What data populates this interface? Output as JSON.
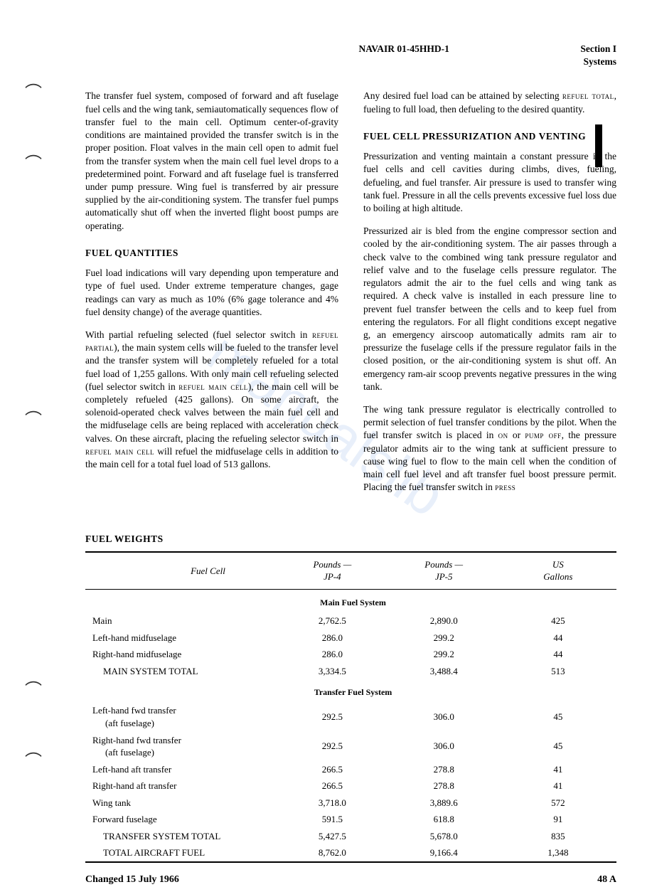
{
  "header": {
    "doc_number": "NAVAIR 01-45HHD-1",
    "section": "Section I",
    "subsection": "Systems"
  },
  "watermark": "manualslib",
  "col_left": {
    "p1": "The transfer fuel system, composed of forward and aft fuselage fuel cells and the wing tank, semiautomatically sequences flow of transfer fuel to the main cell. Optimum center-of-gravity conditions are maintained provided the transfer switch is in the proper position. Float valves in the main cell open to admit fuel from the transfer system when the main cell fuel level drops to a predetermined point. Forward and aft fuselage fuel is transferred under pump pressure. Wing fuel is transferred by air pressure supplied by the air-conditioning system. The transfer fuel pumps automatically shut off when the inverted flight boost pumps are operating.",
    "h1": "FUEL QUANTITIES",
    "p2": "Fuel load indications will vary depending upon temperature and type of fuel used. Under extreme temperature changes, gage readings can vary as much as 10% (6% gage tolerance and 4% fuel density change) of the average quantities.",
    "p3_a": "With partial refueling selected (fuel selector switch in ",
    "p3_sc1": "refuel partial",
    "p3_b": "), the main system cells will be fueled to the transfer level and the transfer system will be completely refueled for a total fuel load of 1,255 gallons. With only main cell refueling selected (fuel selector switch in ",
    "p3_sc2": "refuel main cell",
    "p3_c": "), the main cell will be completely refueled (425 gallons). On some aircraft, the solenoid-operated check valves between the main fuel cell and the midfuselage cells are being replaced with acceleration check valves. On these aircraft, placing the refueling selector switch in ",
    "p3_sc3": "refuel main cell",
    "p3_d": " will refuel the midfuselage cells in addition to the main cell for a total fuel load of 513 gallons."
  },
  "col_right": {
    "p1_a": "Any desired fuel load can be attained by selecting ",
    "p1_sc1": "refuel total",
    "p1_b": ", fueling to full load, then defueling to the desired quantity.",
    "h1": "FUEL CELL PRESSURIZATION AND VENTING",
    "p2": "Pressurization and venting maintain a constant pressure in the fuel cells and cell cavities during climbs, dives, fueling, defueling, and fuel transfer. Air pressure is used to transfer wing tank fuel. Pressure in all the cells prevents excessive fuel loss due to boiling at high altitude.",
    "p3": "Pressurized air is bled from the engine compressor section and cooled by the air-conditioning system. The air passes through a check valve to the combined wing tank pressure regulator and relief valve and to the fuselage cells pressure regulator. The regulators admit the air to the fuel cells and wing tank as required. A check valve is installed in each pressure line to prevent fuel transfer between the cells and to keep fuel from entering the regulators. For all flight conditions except negative g, an emergency airscoop automatically admits ram air to pressurize the fuselage cells if the pressure regulator fails in the closed position, or the air-conditioning system is shut off. An emergency ram-air scoop prevents negative pressures in the wing tank.",
    "p4_a": "The wing tank pressure regulator is electrically controlled to permit selection of fuel transfer conditions by the pilot. When the fuel transfer switch is placed in ",
    "p4_sc1": "on",
    "p4_b": " or ",
    "p4_sc2": "pump off",
    "p4_c": ", the pressure regulator admits air to the wing tank at sufficient pressure to cause wing fuel to flow to the main cell when the condition of main cell fuel level and aft transfer fuel boost pressure permit. Placing the fuel transfer switch in ",
    "p4_sc3": "press"
  },
  "table": {
    "heading": "FUEL WEIGHTS",
    "headers": {
      "c1": "Fuel Cell",
      "c2a": "Pounds —",
      "c2b": "JP-4",
      "c3a": "Pounds —",
      "c3b": "JP-5",
      "c4a": "US",
      "c4b": "Gallons"
    },
    "section1": "Main Fuel System",
    "rows1": [
      {
        "label": "Main",
        "jp4": "2,762.5",
        "jp5": "2,890.0",
        "gal": "425"
      },
      {
        "label": "Left-hand midfuselage",
        "jp4": "286.0",
        "jp5": "299.2",
        "gal": "44"
      },
      {
        "label": "Right-hand midfuselage",
        "jp4": "286.0",
        "jp5": "299.2",
        "gal": "44"
      },
      {
        "label": "MAIN SYSTEM TOTAL",
        "jp4": "3,334.5",
        "jp5": "3,488.4",
        "gal": "513",
        "indent": true
      }
    ],
    "section2": "Transfer Fuel System",
    "rows2": [
      {
        "label": "Left-hand fwd transfer",
        "sub": "(aft fuselage)",
        "jp4": "292.5",
        "jp5": "306.0",
        "gal": "45"
      },
      {
        "label": "Right-hand fwd transfer",
        "sub": "(aft fuselage)",
        "jp4": "292.5",
        "jp5": "306.0",
        "gal": "45"
      },
      {
        "label": "Left-hand aft transfer",
        "jp4": "266.5",
        "jp5": "278.8",
        "gal": "41"
      },
      {
        "label": "Right-hand aft transfer",
        "jp4": "266.5",
        "jp5": "278.8",
        "gal": "41"
      },
      {
        "label": "Wing tank",
        "jp4": "3,718.0",
        "jp5": "3,889.6",
        "gal": "572"
      },
      {
        "label": "Forward fuselage",
        "jp4": "591.5",
        "jp5": "618.8",
        "gal": "91"
      },
      {
        "label": "TRANSFER SYSTEM TOTAL",
        "jp4": "5,427.5",
        "jp5": "5,678.0",
        "gal": "835",
        "indent": true
      },
      {
        "label": "TOTAL AIRCRAFT FUEL",
        "jp4": "8,762.0",
        "jp5": "9,166.4",
        "gal": "1,348",
        "indent": true
      }
    ]
  },
  "footer": {
    "left": "Changed 15 July 1966",
    "right": "48 A"
  }
}
